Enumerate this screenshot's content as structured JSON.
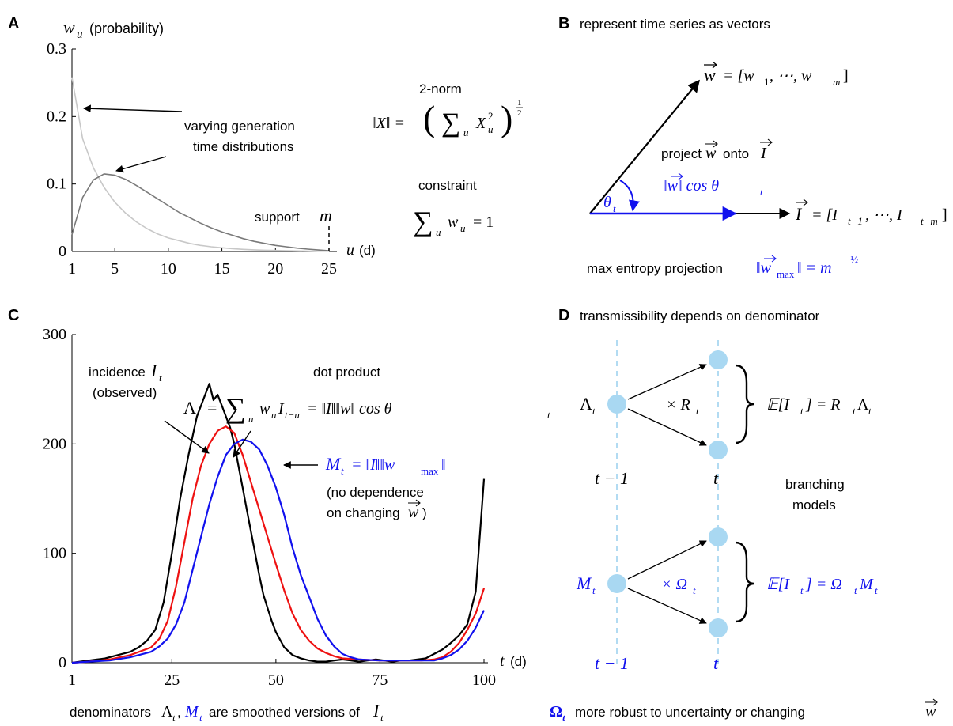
{
  "colors": {
    "black": "#000000",
    "red": "#ee1111",
    "blue": "#1111ee",
    "light_blue": "#a9d8f2",
    "dash_blue": "#9fd2ee",
    "gray_dark": "#7a7a7a",
    "gray_light": "#c8c8c8"
  },
  "panel_a": {
    "letter": "A",
    "ylabel_var": "w",
    "ylabel_sub": "u",
    "ylabel_text": "(probability)",
    "xlabel_var": "u",
    "xlabel_text": "(d)",
    "annotation_line1": "varying generation",
    "annotation_line2": "time distributions",
    "support_text": "support",
    "support_var": "m",
    "norm_title": "2-norm",
    "norm_lhs": "‖X‖ = ",
    "norm_sum": "∑",
    "norm_sub": "u",
    "norm_var": "X",
    "norm_var_sub": "u",
    "norm_var_sup": "2",
    "norm_exp_num": "1",
    "norm_exp_den": "2",
    "constraint_title": "constraint",
    "constraint_sum": "∑",
    "constraint_sub": "u",
    "constraint_var": "w",
    "constraint_var_sub": "u",
    "constraint_rhs": "= 1"
  },
  "panel_b": {
    "letter": "B",
    "title": "represent time series as vectors",
    "w_vec": "w",
    "w_def": "= [w",
    "w_def_sub1": "1",
    "w_def_mid": ", ⋯, w",
    "w_def_sub2": "m",
    "w_def_end": "]",
    "project_text1": "project",
    "project_w": "w",
    "project_text2": "onto",
    "project_I": "I",
    "theta": "θ",
    "theta_sub": "t",
    "proj_len": "‖w‖ cos θ",
    "proj_len_sub": "t",
    "I_vec": "I",
    "I_def": "= [I",
    "I_def_sub1": "t−1",
    "I_def_mid": ", ⋯, I",
    "I_def_sub2": "t−m",
    "I_def_end": "]",
    "max_text": "max entropy projection",
    "max_lhs": "‖w",
    "max_sub": "max",
    "max_rhs": "‖ = m",
    "max_exp": "−½"
  },
  "panel_c": {
    "letter": "C",
    "incidence_line1": "incidence",
    "incidence_var": "I",
    "incidence_sub": "t",
    "incidence_line2": "(observed)",
    "dot_title": "dot product",
    "dot_lhs": "Λ",
    "dot_lhs_sub": "t",
    "dot_eq": "=",
    "dot_sum": "∑",
    "dot_sum_sub": "u",
    "dot_term": "w",
    "dot_term_sub": "u",
    "dot_term2": "I",
    "dot_term2_sub": "t−u",
    "dot_rhs": "= ‖I‖‖w‖ cos θ",
    "dot_rhs_sub": "t",
    "m_lhs": "M",
    "m_sub": "t",
    "m_rhs": "= ‖I‖‖w",
    "m_rhs_sub": "max",
    "m_rhs_end": "‖",
    "no_dep1": "(no dependence",
    "no_dep2": "on changing",
    "no_dep_w": "w",
    "xlabel_var": "t",
    "xlabel_text": "(d)",
    "caption_1": "denominators",
    "caption_lambda": "Λ",
    "caption_comma": ",",
    "caption_M": "M",
    "caption_t": "t",
    "caption_2": "are smoothed versions of",
    "caption_I": "I"
  },
  "panel_d": {
    "letter": "D",
    "title": "transmissibility depends on denominator",
    "lambda": "Λ",
    "lambda_sub": "t",
    "times_R": "× R",
    "times_R_sub": "t",
    "exp_R": "𝔼[I",
    "exp_R_sub": "t",
    "exp_R_end": "] = R",
    "exp_R_sub2": "t",
    "exp_R_end2": "Λ",
    "exp_R_sub3": "t",
    "t_minus_1": "t − 1",
    "t": "t",
    "branching1": "branching",
    "branching2": "models",
    "M": "M",
    "M_sub": "t",
    "times_O": "× Ω",
    "times_O_sub": "t",
    "exp_O": "𝔼[I",
    "exp_O_sub": "t",
    "exp_O_end": "] = Ω",
    "exp_O_sub2": "t",
    "exp_O_end2": "M",
    "exp_O_sub3": "t",
    "t_minus_1_blue": "t − 1",
    "t_blue": "t",
    "caption_omega": "Ω",
    "caption_omega_sub": "t",
    "caption_text": "more robust to uncertainty or changing",
    "caption_w": "w"
  },
  "chart_data": [
    {
      "panel": "A",
      "type": "line",
      "xlabel": "u (d)",
      "ylabel": "w_u (probability)",
      "xlim": [
        1,
        25
      ],
      "ylim": [
        0,
        0.3
      ],
      "xticks": [
        1,
        5,
        10,
        15,
        20,
        25
      ],
      "yticks": [
        0,
        0.1,
        0.2,
        0.3
      ],
      "ytick_labels": [
        "0",
        "0.1",
        "0.2",
        "0.3"
      ],
      "grid": false,
      "series": [
        {
          "color": "#c8c8c8",
          "x": [
            1,
            2,
            3,
            4,
            5,
            6,
            7,
            8,
            9,
            10,
            11,
            12,
            13,
            14,
            15,
            16,
            17,
            18,
            19,
            20,
            21,
            22,
            23,
            24,
            25
          ],
          "y": [
            0.258,
            0.167,
            0.124,
            0.095,
            0.073,
            0.057,
            0.044,
            0.034,
            0.026,
            0.02,
            0.016,
            0.012,
            0.009,
            0.007,
            0.0055,
            0.0042,
            0.0032,
            0.0025,
            0.0019,
            0.0015,
            0.0011,
            0.0008,
            0.0006,
            0.0004,
            0.0003
          ]
        },
        {
          "color": "#7a7a7a",
          "x": [
            1,
            2,
            3,
            4,
            5,
            6,
            7,
            8,
            9,
            10,
            11,
            12,
            13,
            14,
            15,
            16,
            17,
            18,
            19,
            20,
            21,
            22,
            23,
            24,
            25
          ],
          "y": [
            0.025,
            0.08,
            0.106,
            0.115,
            0.113,
            0.107,
            0.098,
            0.088,
            0.078,
            0.068,
            0.058,
            0.05,
            0.042,
            0.035,
            0.029,
            0.024,
            0.019,
            0.015,
            0.012,
            0.009,
            0.007,
            0.005,
            0.0035,
            0.0022,
            0.0012
          ]
        }
      ]
    },
    {
      "panel": "C",
      "type": "line",
      "xlabel": "t (d)",
      "xlim": [
        1,
        100
      ],
      "ylim": [
        0,
        300
      ],
      "xticks": [
        1,
        25,
        50,
        75,
        100
      ],
      "yticks": [
        0,
        100,
        200,
        300
      ],
      "grid": false,
      "series": [
        {
          "name": "incidence I_t (observed)",
          "color": "#000000",
          "x": [
            1,
            3,
            5,
            7,
            9,
            11,
            13,
            15,
            17,
            19,
            21,
            23,
            25,
            27,
            29,
            31,
            33,
            34,
            35,
            36,
            37,
            38,
            39,
            40,
            41,
            42,
            43,
            44,
            45,
            46,
            47,
            48,
            49,
            50,
            52,
            54,
            56,
            58,
            60,
            62,
            64,
            66,
            68,
            70,
            72,
            74,
            76,
            78,
            80,
            82,
            84,
            86,
            88,
            90,
            92,
            94,
            96,
            98,
            100
          ],
          "y": [
            0,
            1,
            2,
            3,
            4,
            6,
            8,
            10,
            14,
            20,
            30,
            55,
            100,
            150,
            190,
            225,
            245,
            255,
            240,
            245,
            235,
            225,
            215,
            200,
            180,
            160,
            140,
            120,
            100,
            80,
            62,
            50,
            38,
            28,
            14,
            7,
            4,
            2,
            1,
            1,
            2,
            3,
            2,
            1,
            2,
            3,
            2,
            1,
            2,
            2,
            3,
            4,
            8,
            12,
            18,
            25,
            35,
            65,
            168
          ]
        },
        {
          "name": "Λ_t",
          "color": "#ee1111",
          "x": [
            1,
            5,
            10,
            15,
            20,
            22,
            24,
            26,
            28,
            30,
            32,
            34,
            36,
            38,
            40,
            42,
            44,
            46,
            48,
            50,
            52,
            54,
            56,
            58,
            60,
            62,
            64,
            66,
            70,
            75,
            80,
            85,
            88,
            90,
            92,
            94,
            96,
            98,
            100
          ],
          "y": [
            0,
            1,
            3,
            7,
            14,
            22,
            38,
            70,
            110,
            150,
            180,
            200,
            212,
            216,
            210,
            190,
            165,
            140,
            115,
            90,
            66,
            45,
            30,
            20,
            13,
            9,
            6,
            4,
            3,
            2,
            2,
            2,
            3,
            5,
            10,
            18,
            30,
            45,
            68
          ]
        },
        {
          "name": "M_t",
          "color": "#1111ee",
          "x": [
            1,
            5,
            10,
            15,
            20,
            22,
            24,
            26,
            28,
            30,
            32,
            34,
            36,
            38,
            40,
            42,
            44,
            46,
            48,
            50,
            52,
            54,
            56,
            58,
            60,
            62,
            64,
            66,
            68,
            70,
            75,
            80,
            85,
            88,
            90,
            92,
            94,
            96,
            98,
            100
          ],
          "y": [
            0,
            1,
            2,
            5,
            10,
            15,
            22,
            35,
            55,
            85,
            115,
            145,
            170,
            190,
            200,
            204,
            202,
            195,
            180,
            160,
            135,
            105,
            80,
            60,
            40,
            25,
            15,
            8,
            5,
            3,
            2,
            2,
            2,
            2,
            4,
            7,
            12,
            20,
            32,
            48
          ]
        }
      ]
    }
  ]
}
